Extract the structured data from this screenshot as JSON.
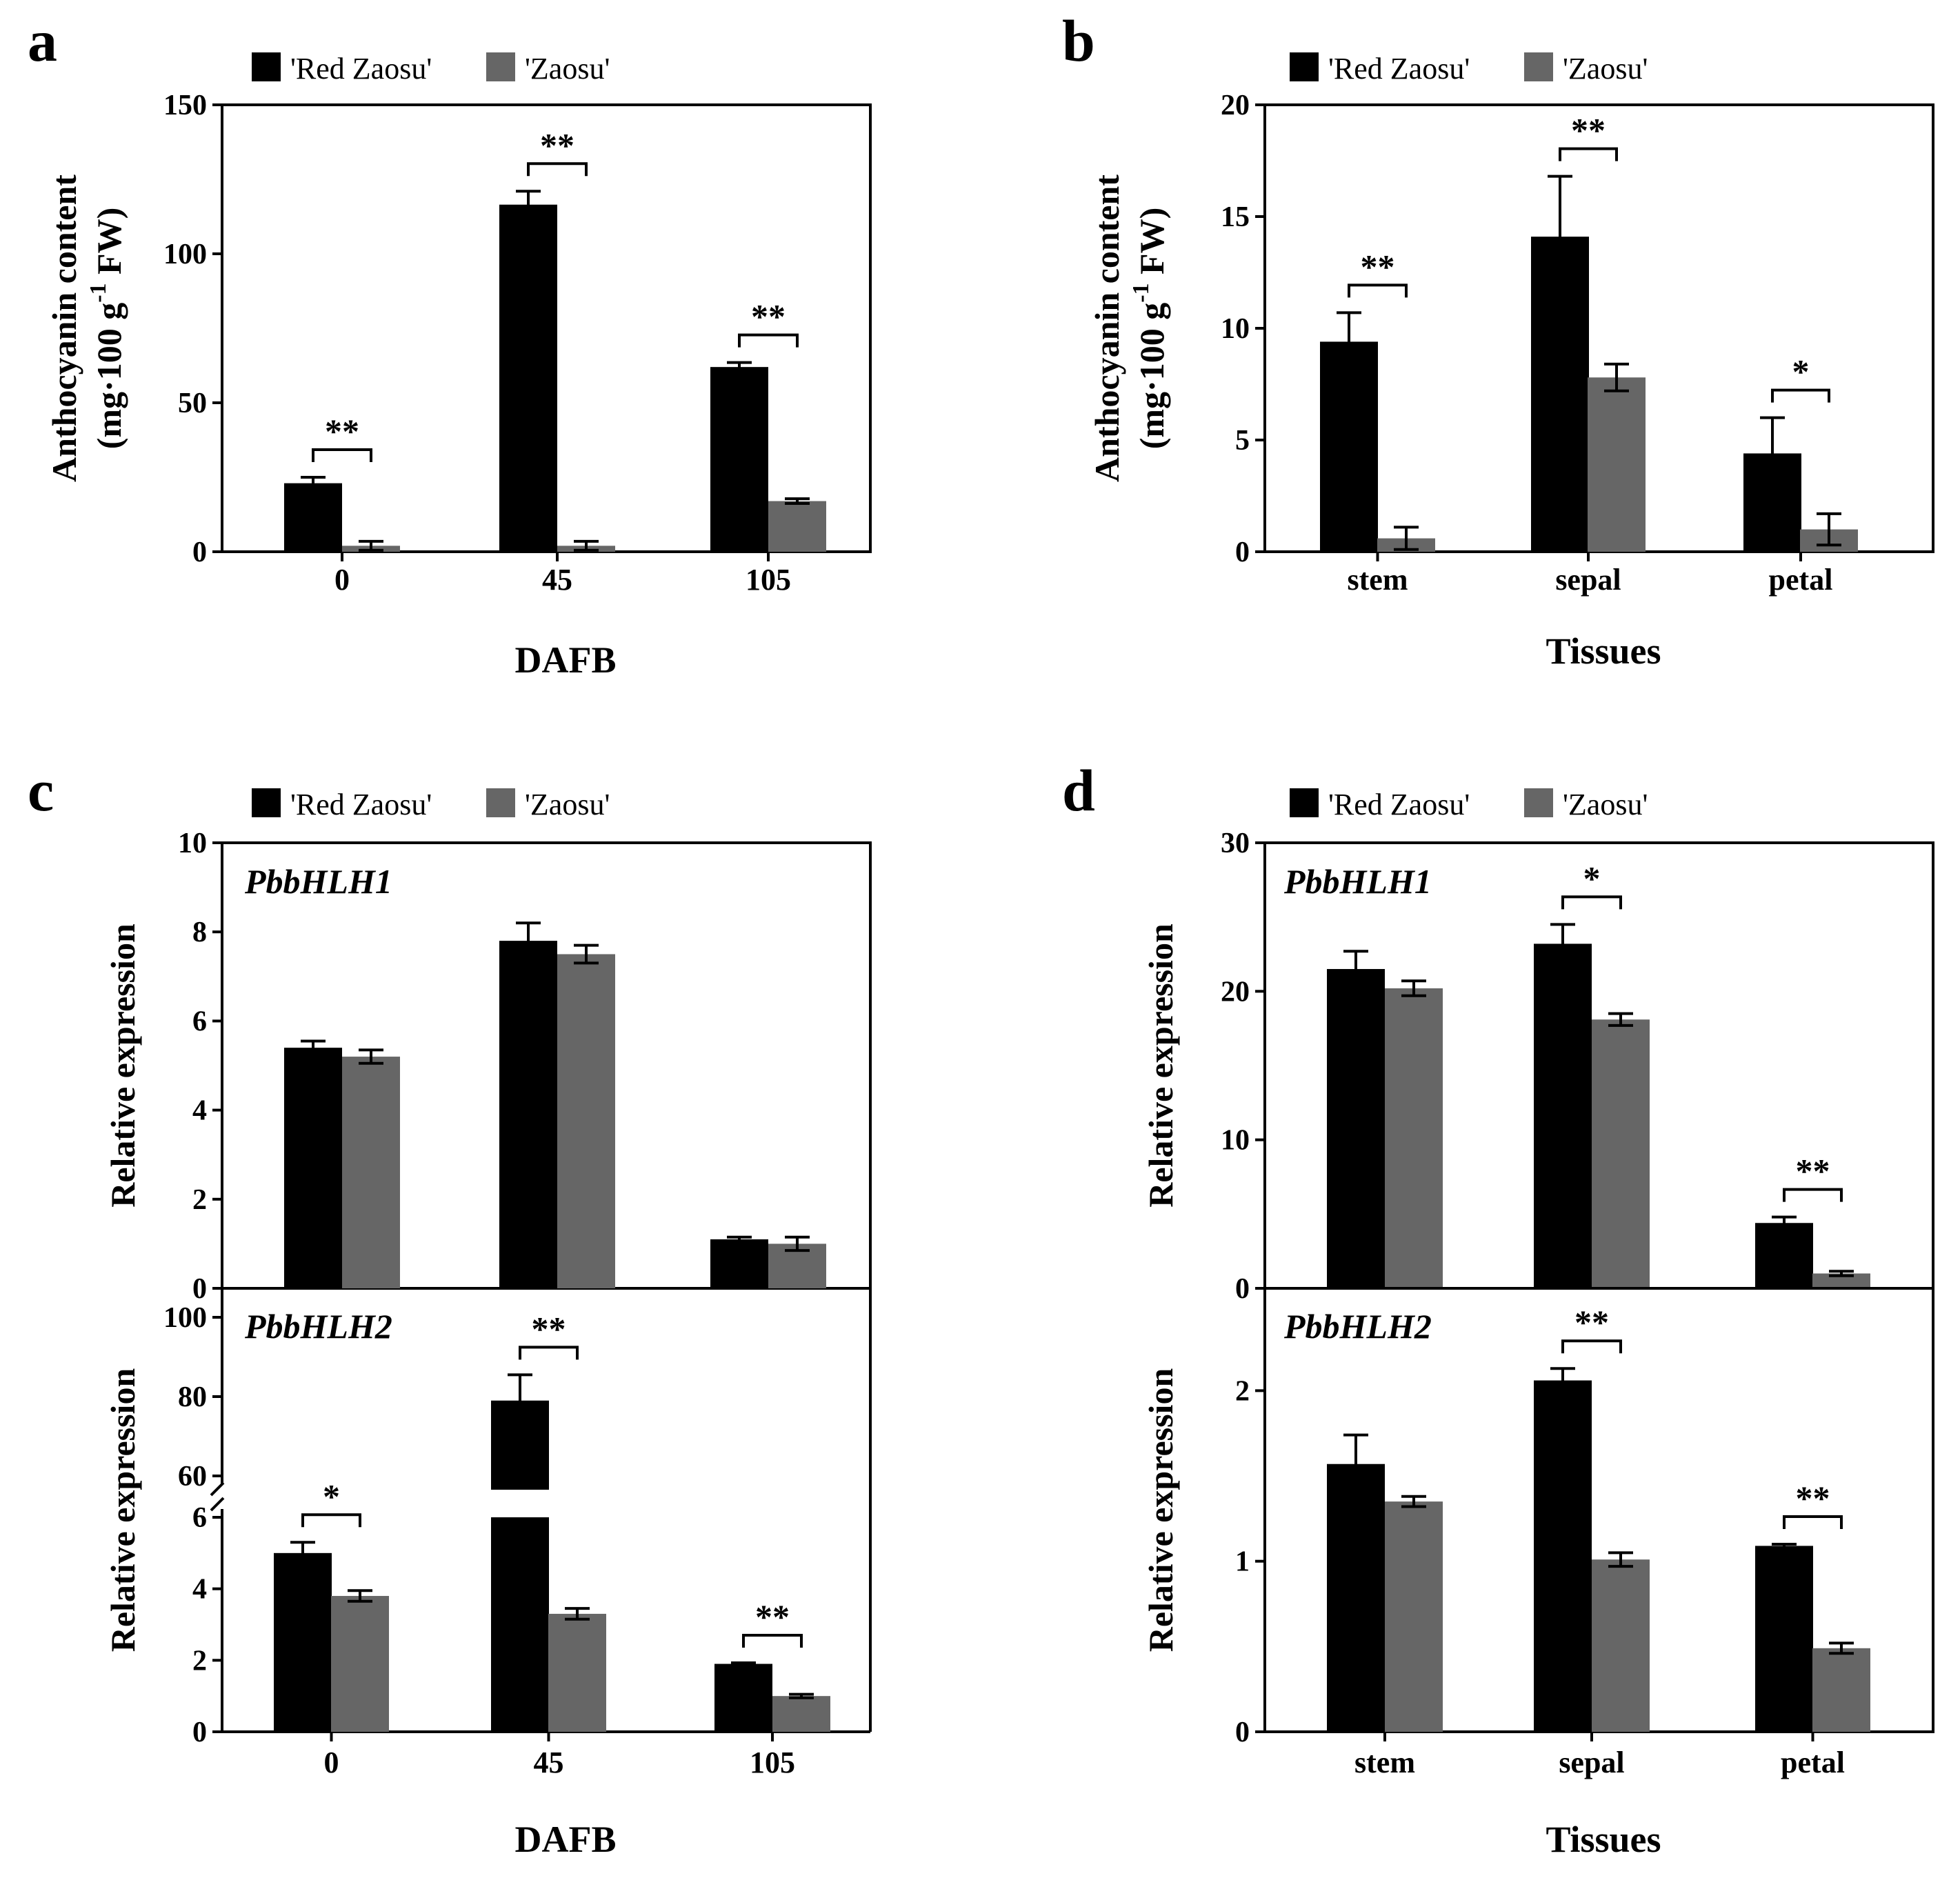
{
  "colors": {
    "red_zaosu": "#000000",
    "zaosu": "#666666"
  },
  "legend": [
    "'Red Zaosu'",
    "'Zaosu'"
  ],
  "panel_labels": [
    "a",
    "b",
    "c",
    "d"
  ],
  "gene_labels": [
    "PbbHLH1",
    "PbbHLH2"
  ],
  "chart_data": [
    {
      "id": "a",
      "type": "bar",
      "xlabel": "DAFB",
      "ylabel_line1": "Anthocyanin content",
      "ylabel_line2": "(mg·100 g-1 FW)",
      "categories": [
        "0",
        "45",
        "105"
      ],
      "ylim": [
        0,
        150
      ],
      "yticks": [
        0,
        50,
        100,
        150
      ],
      "series": [
        {
          "name": "'Red Zaosu'",
          "values": [
            23,
            116.5,
            62
          ],
          "errors": [
            2,
            4.5,
            1.5
          ]
        },
        {
          "name": "'Zaosu'",
          "values": [
            2,
            2,
            17
          ],
          "errors": [
            1.5,
            1.5,
            0.8
          ]
        }
      ],
      "significance": [
        "**",
        "**",
        "**"
      ]
    },
    {
      "id": "b",
      "type": "bar",
      "xlabel": "Tissues",
      "ylabel_line1": "Anthocyanin content",
      "ylabel_line2": "(mg·100 g-1 FW)",
      "categories": [
        "stem",
        "sepal",
        "petal"
      ],
      "ylim": [
        0,
        20
      ],
      "yticks": [
        0,
        5,
        10,
        15,
        20
      ],
      "series": [
        {
          "name": "'Red Zaosu'",
          "values": [
            9.4,
            14.1,
            4.4
          ],
          "errors": [
            1.3,
            2.7,
            1.6
          ]
        },
        {
          "name": "'Zaosu'",
          "values": [
            0.6,
            7.8,
            1.0
          ],
          "errors": [
            0.5,
            0.6,
            0.7
          ]
        }
      ],
      "significance": [
        "**",
        "**",
        "*"
      ]
    },
    {
      "id": "c-top",
      "type": "bar",
      "gene": "PbbHLH1",
      "ylabel": "Relative expression",
      "categories": [
        "0",
        "45",
        "105"
      ],
      "ylim": [
        0,
        10
      ],
      "yticks": [
        0,
        2,
        4,
        6,
        8,
        10
      ],
      "series": [
        {
          "name": "'Red Zaosu'",
          "values": [
            5.4,
            7.8,
            1.1
          ],
          "errors": [
            0.15,
            0.4,
            0.05
          ]
        },
        {
          "name": "'Zaosu'",
          "values": [
            5.2,
            7.5,
            1.0
          ],
          "errors": [
            0.15,
            0.2,
            0.15
          ]
        }
      ],
      "significance": [
        "",
        "",
        ""
      ]
    },
    {
      "id": "c-bottom",
      "type": "bar",
      "gene": "PbbHLH2",
      "xlabel": "DAFB",
      "ylabel": "Relative expression",
      "categories": [
        "0",
        "45",
        "105"
      ],
      "ylim": [
        0,
        100
      ],
      "axis_break": [
        6,
        55
      ],
      "yticks": [
        0,
        2,
        4,
        6,
        60,
        80,
        100
      ],
      "series": [
        {
          "name": "'Red Zaosu'",
          "values": [
            5.0,
            79,
            1.9
          ],
          "errors": [
            0.3,
            6.5,
            0.03
          ]
        },
        {
          "name": "'Zaosu'",
          "values": [
            3.8,
            3.3,
            1.0
          ],
          "errors": [
            0.15,
            0.15,
            0.05
          ]
        }
      ],
      "significance": [
        "*",
        "**",
        "**"
      ]
    },
    {
      "id": "d-top",
      "type": "bar",
      "gene": "PbbHLH1",
      "ylabel": "Relative expression",
      "categories": [
        "stem",
        "sepal",
        "petal"
      ],
      "ylim": [
        0,
        30
      ],
      "yticks": [
        0,
        10,
        20,
        30
      ],
      "series": [
        {
          "name": "'Red Zaosu'",
          "values": [
            21.5,
            23.2,
            4.4
          ],
          "errors": [
            1.2,
            1.3,
            0.4
          ]
        },
        {
          "name": "'Zaosu'",
          "values": [
            20.2,
            18.1,
            1.0
          ],
          "errors": [
            0.5,
            0.4,
            0.15
          ]
        }
      ],
      "significance": [
        "",
        "*",
        "**"
      ]
    },
    {
      "id": "d-bottom",
      "type": "bar",
      "gene": "PbbHLH2",
      "xlabel": "Tissues",
      "ylabel": "Relative expression",
      "categories": [
        "stem",
        "sepal",
        "petal"
      ],
      "ylim": [
        0,
        2.6
      ],
      "yticks": [
        0,
        1,
        2
      ],
      "series": [
        {
          "name": "'Red Zaosu'",
          "values": [
            1.57,
            2.06,
            1.09
          ],
          "errors": [
            0.17,
            0.07,
            0.01
          ]
        },
        {
          "name": "'Zaosu'",
          "values": [
            1.35,
            1.01,
            0.49
          ],
          "errors": [
            0.03,
            0.04,
            0.03
          ]
        }
      ],
      "significance": [
        "",
        "**",
        "**"
      ]
    }
  ]
}
